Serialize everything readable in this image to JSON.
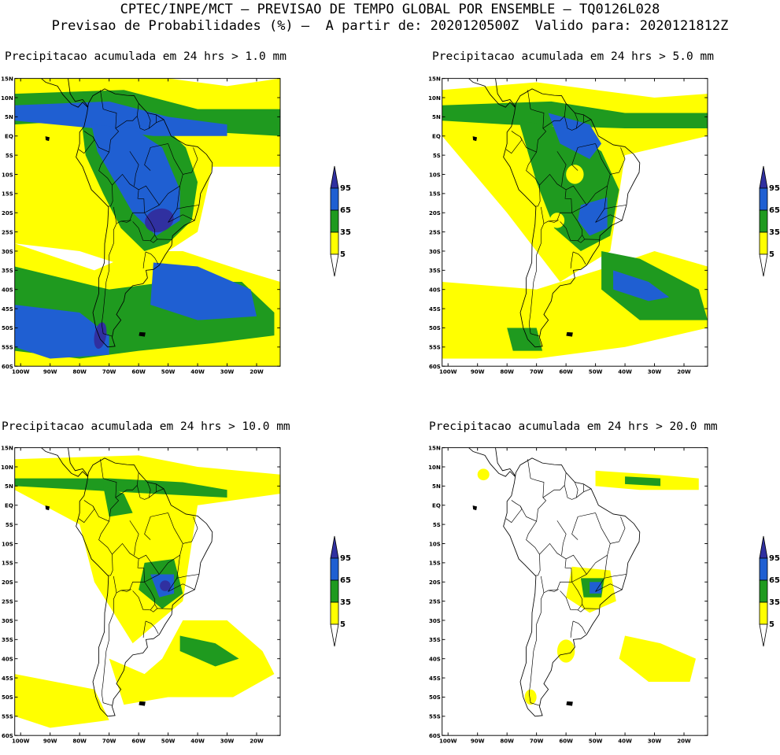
{
  "header": {
    "line1": "CPTEC/INPE/MCT – PREVISAO DE TEMPO GLOBAL POR ENSEMBLE – TQ0126L028",
    "line2": "Previsao de Probabilidades (%) –  A partir de: 2020120500Z  Valido para: 2020121812Z"
  },
  "axes": {
    "lat_labels": [
      "15N",
      "10N",
      "5N",
      "EQ",
      "5S",
      "10S",
      "15S",
      "20S",
      "25S",
      "30S",
      "35S",
      "40S",
      "45S",
      "50S",
      "55S",
      "60S"
    ],
    "lon_labels": [
      "100W",
      "90W",
      "80W",
      "70W",
      "60W",
      "50W",
      "40W",
      "30W",
      "20W"
    ]
  },
  "legend": {
    "labels": [
      "95",
      "65",
      "35",
      "5"
    ],
    "colors": {
      "yellow": "#ffff00",
      "green": "#1f9a1f",
      "blue": "#1f5fd2",
      "purple": "#3030a0"
    }
  },
  "panels": [
    {
      "id": "p1",
      "title": "Precipitacao acumulada em 24 hrs > 1.0 mm"
    },
    {
      "id": "p2",
      "title": "Precipitacao acumulada em 24 hrs > 5.0 mm"
    },
    {
      "id": "p3",
      "title": "Precipitacao acumulada em 24 hrs > 10.0 mm"
    },
    {
      "id": "p4",
      "title": "Precipitacao acumulada em 24 hrs > 20.0 mm"
    }
  ]
}
